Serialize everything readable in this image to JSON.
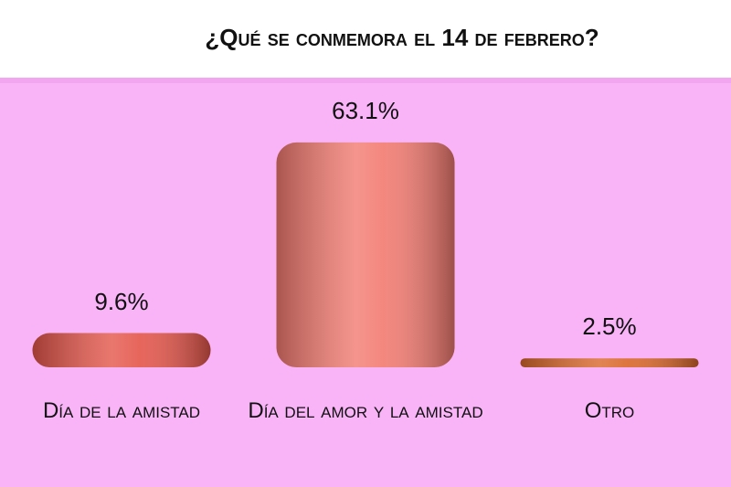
{
  "chart_data": {
    "type": "bar",
    "title": "¿Qué se conmemora el 14 de febrero?",
    "categories": [
      "Día de la amistad",
      "Día del amor y la amistad",
      "Otro"
    ],
    "values": [
      9.6,
      63.1,
      2.5
    ],
    "value_labels": [
      "9.6%",
      "63.1%",
      "2.5%"
    ],
    "colors": [
      "#e4554a",
      "#f27a70",
      "#d9662a"
    ]
  }
}
